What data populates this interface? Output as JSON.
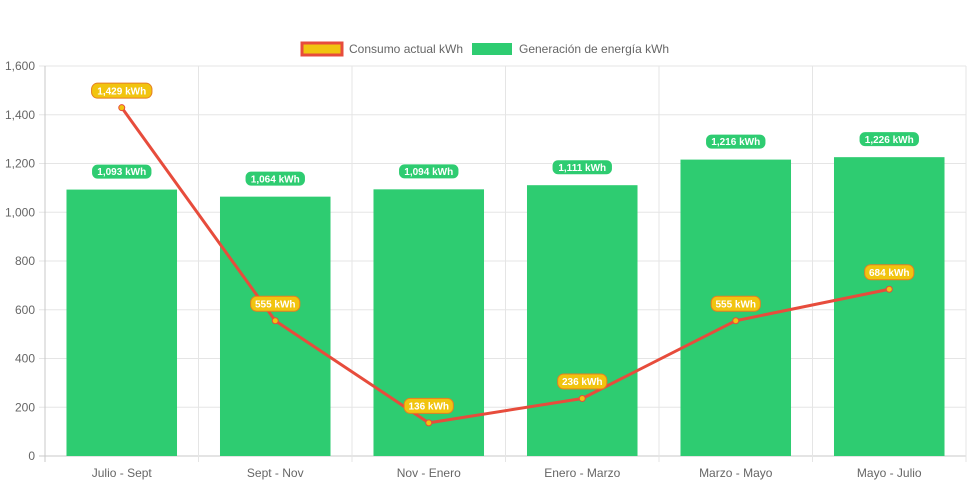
{
  "chart_data": {
    "type": "bar",
    "categories": [
      "Julio - Sept",
      "Sept - Nov",
      "Nov - Enero",
      "Enero - Marzo",
      "Marzo - Mayo",
      "Mayo - Julio"
    ],
    "series": [
      {
        "name": "Consumo actual kWh",
        "type": "line",
        "values": [
          1429,
          555,
          136,
          236,
          555,
          684
        ],
        "labels": [
          "1,429 kWh",
          "555 kWh",
          "136 kWh",
          "236 kWh",
          "555 kWh",
          "684 kWh"
        ],
        "color": "#e74c3c",
        "fill": "#f1c40f"
      },
      {
        "name": "Generación de energía kWh",
        "type": "bar",
        "values": [
          1093,
          1064,
          1094,
          1111,
          1216,
          1226
        ],
        "labels": [
          "1,093 kWh",
          "1,064 kWh",
          "1,094 kWh",
          "1,111 kWh",
          "1,216 kWh",
          "1,226 kWh"
        ],
        "color": "#2ecc71"
      }
    ],
    "ylim": [
      0,
      1600
    ],
    "yticks": [
      0,
      200,
      400,
      600,
      800,
      1000,
      1200,
      1400,
      1600
    ],
    "ytick_labels": [
      "0",
      "200",
      "400",
      "600",
      "800",
      "1,000",
      "1,200",
      "1,400",
      "1,600"
    ],
    "grid": true,
    "legend_position": "top-center"
  }
}
